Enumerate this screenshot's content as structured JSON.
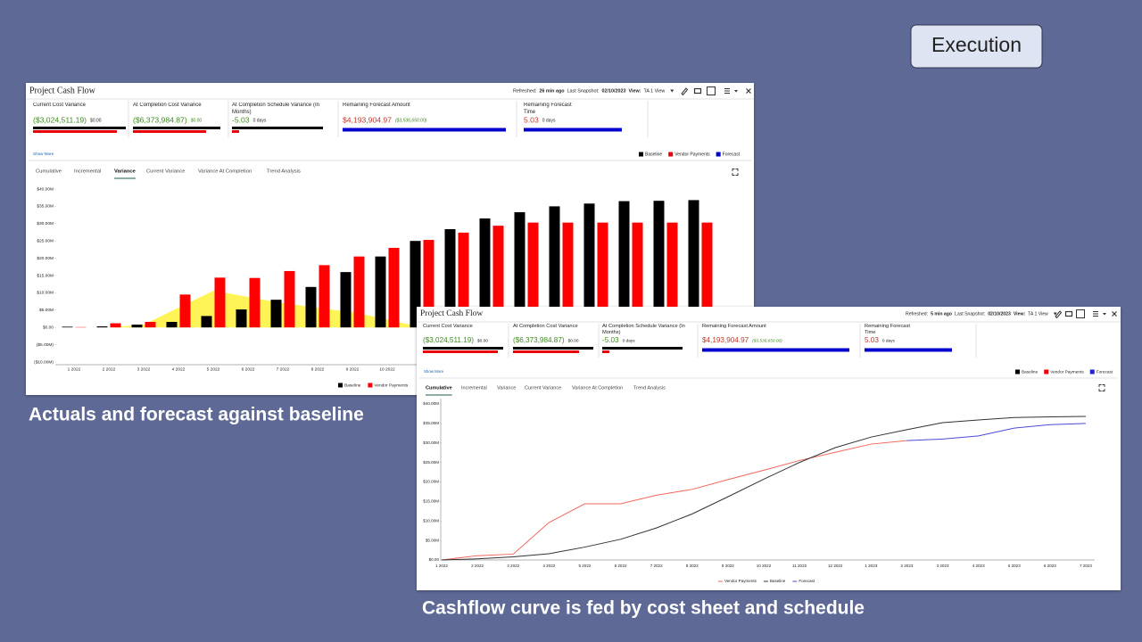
{
  "badge": "Execution",
  "captions": [
    "Actuals and forecast against baseline",
    "Cashflow curve is fed by cost sheet and schedule"
  ],
  "panels": [
    {
      "header": {
        "title": "Project Cash Flow",
        "refreshed_label": "Refreshed:",
        "refreshed": "26 min ago",
        "snapshot_label": "Last Snapshot:",
        "snapshot": "02/10/2023",
        "view_label": "View:",
        "view": "TA 1 View"
      },
      "kpis": [
        {
          "label": "Current Cost Variance",
          "value": "($3,024,511.19)",
          "value_color": "#3f8a1f",
          "sub": "$0.00",
          "sub_color": "#222222",
          "bar_colors": [
            "#000000",
            "#e8000b"
          ]
        },
        {
          "label": "At Completion Cost Variance",
          "value": "($6,373,984.87)",
          "value_color": "#3f8a1f",
          "sub": "$0.00",
          "sub_color": "#3f8a1f",
          "bar_colors": [
            "#000000",
            "#e8000b"
          ]
        },
        {
          "label": "At Completion Schedule Variance (In Months)",
          "value": "-5.03",
          "value_color": "#3f8a1f",
          "sub": "0 days",
          "sub_color": "#222222",
          "bar_colors": [
            "#000000",
            "#e8000b"
          ]
        },
        {
          "label": "Remaining Forecast Amount",
          "value": "$4,193,904.97",
          "value_color": "#c0392b",
          "sub": "($3,536,650.00)",
          "sub_color": "#3f8a1f",
          "bar_colors": [
            "#0000cc"
          ]
        },
        {
          "label": "Remaining Forecast Time",
          "value": "5.03",
          "value_color": "#c0392b",
          "sub": "0 days",
          "sub_color": "#222222",
          "bar_colors": [
            "#0000cc"
          ]
        }
      ],
      "show_more": "Show More",
      "legend": [
        {
          "name": "Baseline",
          "color": "#000000"
        },
        {
          "name": "Vendor Payments",
          "color": "#e8000b"
        },
        {
          "name": "Forecast",
          "color": "#0000cc"
        }
      ],
      "tabs": [
        "Cumulative",
        "Incremental",
        "Variance",
        "Current Variance",
        "Variance At Completion",
        "Trend Analysis"
      ],
      "active_tab": 2,
      "chart": {
        "type": "bar",
        "categories": [
          "1 2022",
          "2 2022",
          "3 2022",
          "4 2022",
          "5 2022",
          "6 2022",
          "7 2022",
          "8 2022",
          "9 2022",
          "10 2022",
          null,
          null,
          null,
          null,
          null,
          null,
          null,
          null,
          null
        ],
        "ylim": [
          -10000000,
          40000000
        ],
        "yticks": [
          {
            "value": 40000000,
            "label": "$40.00M"
          },
          {
            "value": 35000000,
            "label": "$35.00M"
          },
          {
            "value": 30000000,
            "label": "$30.00M"
          },
          {
            "value": 25000000,
            "label": "$25.00M"
          },
          {
            "value": 20000000,
            "label": "$20.00M"
          },
          {
            "value": 15000000,
            "label": "$15.00M"
          },
          {
            "value": 10000000,
            "label": "$10.00M"
          },
          {
            "value": 5000000,
            "label": "$5.00M"
          },
          {
            "value": 0,
            "label": "$0.00"
          },
          {
            "value": -5000000,
            "label": "($5.00M)"
          },
          {
            "value": -10000000,
            "label": "($10.00M)"
          }
        ],
        "area": {
          "color": "#fff23a",
          "values": [
            0,
            0,
            800000,
            5700000,
            10600000,
            8800000,
            7000000,
            5700000,
            4400000,
            2300000,
            0,
            null,
            null,
            null,
            null,
            null,
            null,
            null,
            null
          ]
        },
        "series": [
          {
            "name": "Baseline",
            "color": "#000000",
            "values": [
              200000,
              300000,
              800000,
              1600000,
              3300000,
              5200000,
              8000000,
              11700000,
              16000000,
              20500000,
              25000000,
              28400000,
              31500000,
              33300000,
              35000000,
              35800000,
              36500000,
              36600000,
              36800000
            ]
          },
          {
            "name": "Vendor Payments",
            "color": "#ff0000",
            "values": [
              100000,
              1200000,
              1600000,
              9500000,
              14400000,
              14300000,
              16300000,
              18000000,
              20500000,
              23000000,
              25300000,
              27400000,
              29400000,
              30300000,
              30300000,
              30300000,
              30300000,
              30300000,
              30300000
            ]
          }
        ]
      }
    },
    {
      "header": {
        "title": "Project Cash Flow",
        "refreshed_label": "Refreshed:",
        "refreshed": "5 min ago",
        "snapshot_label": "Last Snapshot:",
        "snapshot": "02/10/2023",
        "view_label": "View:",
        "view": "TA 1 View"
      },
      "kpis": [
        {
          "label": "Current Cost Variance",
          "value": "($3,024,511.19)",
          "value_color": "#3f8a1f",
          "sub": "$0.00",
          "sub_color": "#222222",
          "bar_colors": [
            "#000000",
            "#e8000b"
          ]
        },
        {
          "label": "At Completion Cost Variance",
          "value": "($6,373,984.87)",
          "value_color": "#3f8a1f",
          "sub": "$0.00",
          "sub_color": "#222222",
          "bar_colors": [
            "#000000",
            "#e8000b"
          ]
        },
        {
          "label": "At Completion Schedule Variance (In Months)",
          "value": "-5.03",
          "value_color": "#3f8a1f",
          "sub": "0 days",
          "sub_color": "#222222",
          "bar_colors": [
            "#000000",
            "#e8000b"
          ]
        },
        {
          "label": "Remaining Forecast Amount",
          "value": "$4,193,904.97",
          "value_color": "#c0392b",
          "sub": "($3,536,650.00)",
          "sub_color": "#3f8a1f",
          "bar_colors": [
            "#0000cc"
          ]
        },
        {
          "label": "Remaining Forecast Time",
          "value": "5.03",
          "value_color": "#c0392b",
          "sub": "0 days",
          "sub_color": "#222222",
          "bar_colors": [
            "#0000cc"
          ]
        }
      ],
      "show_more": "Show More",
      "legend": [
        {
          "name": "Baseline",
          "color": "#000000"
        },
        {
          "name": "Vendor Payments",
          "color": "#e8000b"
        },
        {
          "name": "Forecast",
          "color": "#2222cc"
        }
      ],
      "tabs": [
        "Cumulative",
        "Incremental",
        "Variance",
        "Current Variance",
        "Variance At Completion",
        "Trend Analysis"
      ],
      "active_tab": 0,
      "chart": {
        "type": "line",
        "categories": [
          "1 2022",
          "2 2022",
          "3 2022",
          "4 2022",
          "5 2022",
          "6 2022",
          "7 2022",
          "8 2022",
          "9 2022",
          "10 2022",
          "11 2022",
          "12 2022",
          "1 2023",
          "2 2023",
          "3 2023",
          "4 2023",
          "5 2023",
          "6 2023",
          "7 2023"
        ],
        "ylim": [
          0,
          40000000
        ],
        "yticks": [
          {
            "value": 40000000,
            "label": "$40.00M"
          },
          {
            "value": 35000000,
            "label": "$35.00M"
          },
          {
            "value": 30000000,
            "label": "$30.00M"
          },
          {
            "value": 25000000,
            "label": "$25.00M"
          },
          {
            "value": 20000000,
            "label": "$20.00M"
          },
          {
            "value": 15000000,
            "label": "$15.00M"
          },
          {
            "value": 10000000,
            "label": "$10.00M"
          },
          {
            "value": 5000000,
            "label": "$5.00M"
          },
          {
            "value": 0,
            "label": "$0.00"
          }
        ],
        "series": [
          {
            "name": "Vendor Payments",
            "color": "#f2675a",
            "values": [
              0,
              1100000,
              1500000,
              9600000,
              14400000,
              14400000,
              16600000,
              18100000,
              20600000,
              23000000,
              25500000,
              27600000,
              29700000,
              30600000,
              null,
              null,
              null,
              null,
              null
            ]
          },
          {
            "name": "Baseline",
            "color": "#333333",
            "values": [
              0,
              300000,
              800000,
              1600000,
              3300000,
              5300000,
              8200000,
              11800000,
              16200000,
              20700000,
              25000000,
              28800000,
              31500000,
              33400000,
              35200000,
              35900000,
              36500000,
              36700000,
              36800000
            ]
          },
          {
            "name": "Forecast",
            "color": "#4b4bd8",
            "values": [
              null,
              null,
              null,
              null,
              null,
              null,
              null,
              null,
              null,
              null,
              null,
              null,
              null,
              30600000,
              31000000,
              31800000,
              33800000,
              34700000,
              35000000
            ]
          }
        ]
      }
    }
  ]
}
